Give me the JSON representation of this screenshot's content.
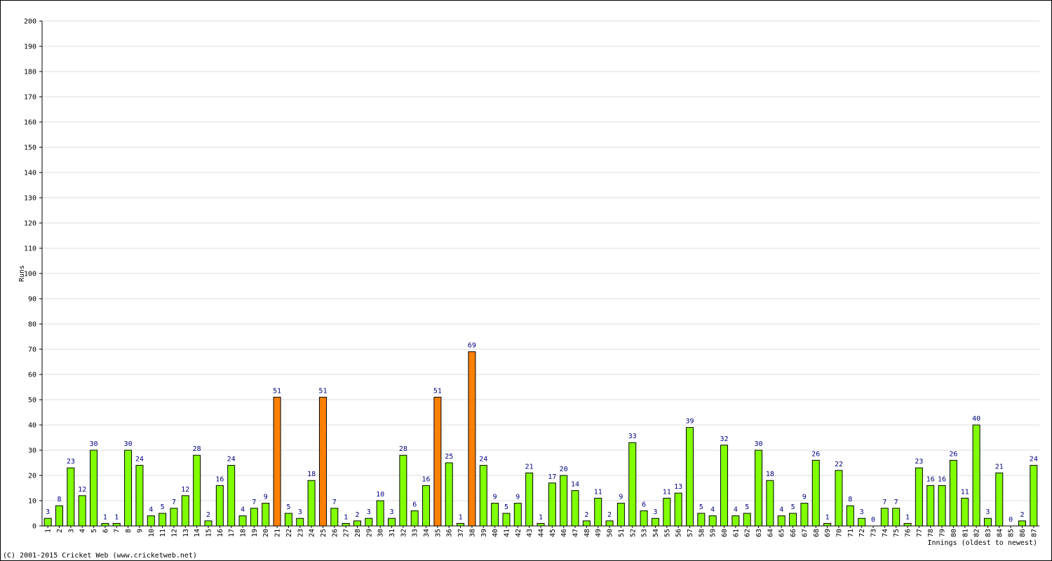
{
  "chart_data": {
    "type": "bar",
    "y_label": "Runs",
    "x_label": "Innings (oldest to newest)",
    "footer": "(C) 2001-2015 Cricket Web (www.cricketweb.net)",
    "categories": [
      "1",
      "2",
      "3",
      "4",
      "5",
      "6",
      "7",
      "8",
      "9",
      "10",
      "11",
      "12",
      "13",
      "14",
      "15",
      "16",
      "17",
      "18",
      "19",
      "20",
      "21",
      "22",
      "23",
      "24",
      "25",
      "26",
      "27",
      "28",
      "29",
      "30",
      "31",
      "32",
      "33",
      "34",
      "35",
      "36",
      "37",
      "38",
      "39",
      "40",
      "41",
      "42",
      "43",
      "44",
      "45",
      "46",
      "47",
      "48",
      "49",
      "50",
      "51",
      "52",
      "53",
      "54",
      "55",
      "56",
      "57",
      "58",
      "59",
      "60",
      "61",
      "62",
      "63",
      "64",
      "65",
      "66",
      "67",
      "68",
      "69",
      "70",
      "71",
      "72",
      "73",
      "74",
      "75",
      "76",
      "77",
      "78",
      "79",
      "80",
      "81",
      "82",
      "83",
      "84",
      "85",
      "86",
      "87"
    ],
    "values": [
      3,
      8,
      23,
      12,
      30,
      1,
      1,
      30,
      24,
      4,
      5,
      7,
      12,
      28,
      2,
      16,
      24,
      4,
      7,
      9,
      51,
      5,
      3,
      18,
      51,
      7,
      1,
      2,
      3,
      10,
      3,
      28,
      6,
      16,
      51,
      25,
      1,
      69,
      24,
      9,
      5,
      9,
      21,
      1,
      17,
      20,
      14,
      2,
      11,
      2,
      9,
      33,
      6,
      3,
      11,
      13,
      39,
      5,
      4,
      32,
      4,
      5,
      30,
      18,
      4,
      5,
      9,
      26,
      1,
      22,
      8,
      3,
      0,
      7,
      7,
      1,
      23,
      16,
      16,
      26,
      11,
      40,
      3,
      21,
      0,
      2,
      24
    ],
    "colors": [
      "#80ff00",
      "#80ff00",
      "#80ff00",
      "#80ff00",
      "#80ff00",
      "#80ff00",
      "#80ff00",
      "#80ff00",
      "#80ff00",
      "#80ff00",
      "#80ff00",
      "#80ff00",
      "#80ff00",
      "#80ff00",
      "#80ff00",
      "#80ff00",
      "#80ff00",
      "#80ff00",
      "#80ff00",
      "#80ff00",
      "#ff8000",
      "#80ff00",
      "#80ff00",
      "#80ff00",
      "#ff8000",
      "#80ff00",
      "#80ff00",
      "#80ff00",
      "#80ff00",
      "#80ff00",
      "#80ff00",
      "#80ff00",
      "#80ff00",
      "#80ff00",
      "#ff8000",
      "#80ff00",
      "#80ff00",
      "#ff8000",
      "#80ff00",
      "#80ff00",
      "#80ff00",
      "#80ff00",
      "#80ff00",
      "#80ff00",
      "#80ff00",
      "#80ff00",
      "#80ff00",
      "#80ff00",
      "#80ff00",
      "#80ff00",
      "#80ff00",
      "#80ff00",
      "#80ff00",
      "#80ff00",
      "#80ff00",
      "#80ff00",
      "#80ff00",
      "#80ff00",
      "#80ff00",
      "#80ff00",
      "#80ff00",
      "#80ff00",
      "#80ff00",
      "#80ff00",
      "#80ff00",
      "#80ff00",
      "#80ff00",
      "#80ff00",
      "#80ff00",
      "#80ff00",
      "#80ff00",
      "#80ff00",
      "#80ff00",
      "#80ff00",
      "#80ff00",
      "#80ff00",
      "#80ff00",
      "#80ff00",
      "#80ff00",
      "#80ff00",
      "#80ff00",
      "#80ff00",
      "#80ff00",
      "#80ff00",
      "#80ff00",
      "#80ff00",
      "#80ff00"
    ],
    "ylim": [
      0,
      200
    ],
    "yticks": [
      0,
      10,
      20,
      30,
      40,
      50,
      60,
      70,
      80,
      90,
      100,
      110,
      120,
      130,
      140,
      150,
      160,
      170,
      180,
      190,
      200
    ],
    "grid": true
  }
}
